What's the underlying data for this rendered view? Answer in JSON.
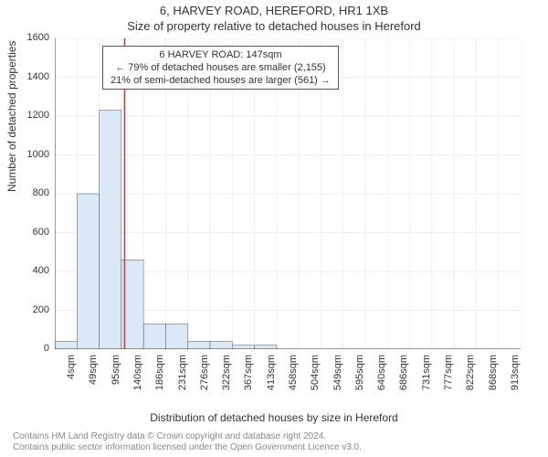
{
  "titles": {
    "main": "6, HARVEY ROAD, HEREFORD, HR1 1XB",
    "sub": "Size of property relative to detached houses in Hereford"
  },
  "annotation": {
    "line1": "6 HARVEY ROAD: 147sqm",
    "line2": "← 79% of detached houses are smaller (2,155)",
    "line3": "21% of semi-detached houses are larger (561) →"
  },
  "axes": {
    "ylabel": "Number of detached properties",
    "xlabel": "Distribution of detached houses by size in Hereford",
    "ylim": [
      0,
      1600
    ],
    "ytick_step": 200,
    "yticks": [
      "0",
      "200",
      "400",
      "600",
      "800",
      "1000",
      "1200",
      "1400",
      "1600"
    ],
    "xticks": [
      "4sqm",
      "49sqm",
      "95sqm",
      "140sqm",
      "186sqm",
      "231sqm",
      "276sqm",
      "322sqm",
      "367sqm",
      "413sqm",
      "458sqm",
      "504sqm",
      "549sqm",
      "595sqm",
      "640sqm",
      "686sqm",
      "731sqm",
      "777sqm",
      "822sqm",
      "868sqm",
      "913sqm"
    ]
  },
  "chart": {
    "type": "histogram",
    "bar_count": 21,
    "values": [
      40,
      800,
      1230,
      460,
      130,
      130,
      40,
      40,
      20,
      20,
      0,
      0,
      0,
      0,
      0,
      0,
      0,
      0,
      0,
      0,
      0
    ],
    "bar_fill": "#dbe8f6",
    "bar_stroke": "#555555",
    "marker_value": 147,
    "x_min": 4,
    "x_max": 958,
    "marker_color": "#cc3333",
    "background": "#ffffff",
    "grid_color": "#eeeeee"
  },
  "credits": {
    "line1": "Contains HM Land Registry data © Crown copyright and database right 2024.",
    "line2": "Contains public sector information licensed under the Open Government Licence v3.0."
  }
}
